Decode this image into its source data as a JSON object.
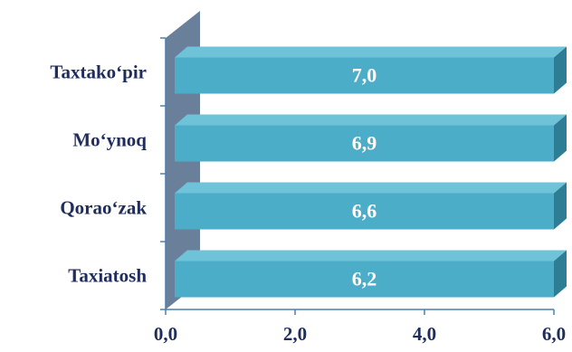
{
  "chart_data": {
    "type": "bar",
    "orientation": "horizontal",
    "categories": [
      "Taxiatosh",
      "Qorao‘zak",
      "Mo‘ynoq ",
      "Taxtako‘pir"
    ],
    "values": [
      6.2,
      6.6,
      6.9,
      7.0
    ],
    "data_labels": [
      "6,2",
      "6,6",
      "6,9",
      "7,0"
    ],
    "x_ticks": [
      0,
      2,
      4,
      6
    ],
    "x_tick_labels": [
      "0,0",
      "2,0",
      "4,0",
      "6,0"
    ],
    "xlim": [
      0,
      6
    ],
    "grid": false,
    "legend": "none",
    "title": "",
    "xlabel": "",
    "ylabel": "",
    "colors": {
      "bar_front": "#4badc8",
      "bar_top": "#6fc3d9",
      "bar_side": "#2d7d95",
      "wall": "#6a7f9a",
      "axis": "#4a7fb0",
      "text": "#1f2d5c"
    }
  }
}
